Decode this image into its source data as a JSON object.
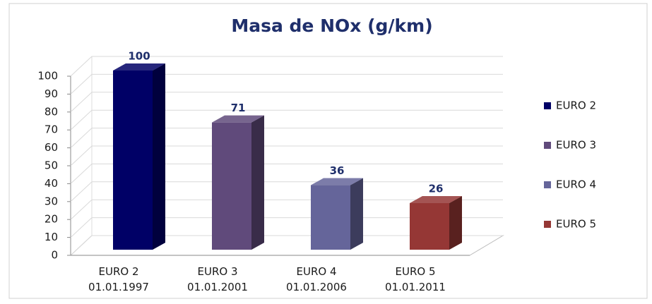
{
  "chart_data": {
    "type": "bar3d",
    "title": "Masa de NOx (g/km)",
    "categories": [
      "EURO 2\n01.01.1997",
      "EURO 3\n01.01.2001",
      "EURO 4\n01.01.2006",
      "EURO 5\n01.01.2011"
    ],
    "values": [
      100,
      71,
      36,
      26
    ],
    "colors": [
      "#000066",
      "#604a7b",
      "#65659a",
      "#953735"
    ],
    "legend": [
      "EURO 2",
      "EURO 3",
      "EURO 4",
      "EURO 5"
    ],
    "ylim": [
      0,
      100
    ],
    "yticks": [
      0,
      10,
      20,
      30,
      40,
      50,
      60,
      70,
      80,
      90,
      100
    ],
    "grid": true
  }
}
